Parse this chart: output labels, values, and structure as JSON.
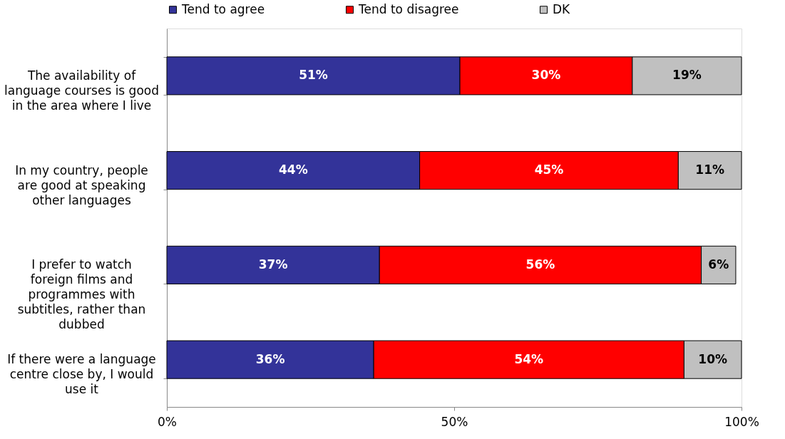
{
  "chart_data": {
    "type": "bar",
    "orientation": "horizontal",
    "stacked": true,
    "categories": [
      "The availability of language courses is good in the area where I live",
      "In my country, people are good at speaking other languages",
      "I prefer to watch foreign films and programmes with subtitles, rather than dubbed",
      "If there were a language centre close by, I would use it"
    ],
    "series": [
      {
        "name": "Tend to agree",
        "color": "#333399",
        "values": [
          51,
          44,
          37,
          36
        ],
        "value_labels": [
          "51%",
          "44%",
          "37%",
          "36%"
        ]
      },
      {
        "name": "Tend to disagree",
        "color": "#ff0000",
        "values": [
          30,
          45,
          56,
          54
        ],
        "value_labels": [
          "30%",
          "45%",
          "56%",
          "54%"
        ]
      },
      {
        "name": "DK",
        "color": "#c0c0c0",
        "values": [
          19,
          11,
          6,
          10
        ],
        "value_labels": [
          "19%",
          "11%",
          "6%",
          "10%"
        ]
      }
    ],
    "xlim": [
      0,
      100
    ],
    "xticks": [
      {
        "value": 0,
        "label": "0%"
      },
      {
        "value": 50,
        "label": "50%"
      },
      {
        "value": 100,
        "label": "100%"
      }
    ],
    "legend": "top",
    "grid": false
  }
}
